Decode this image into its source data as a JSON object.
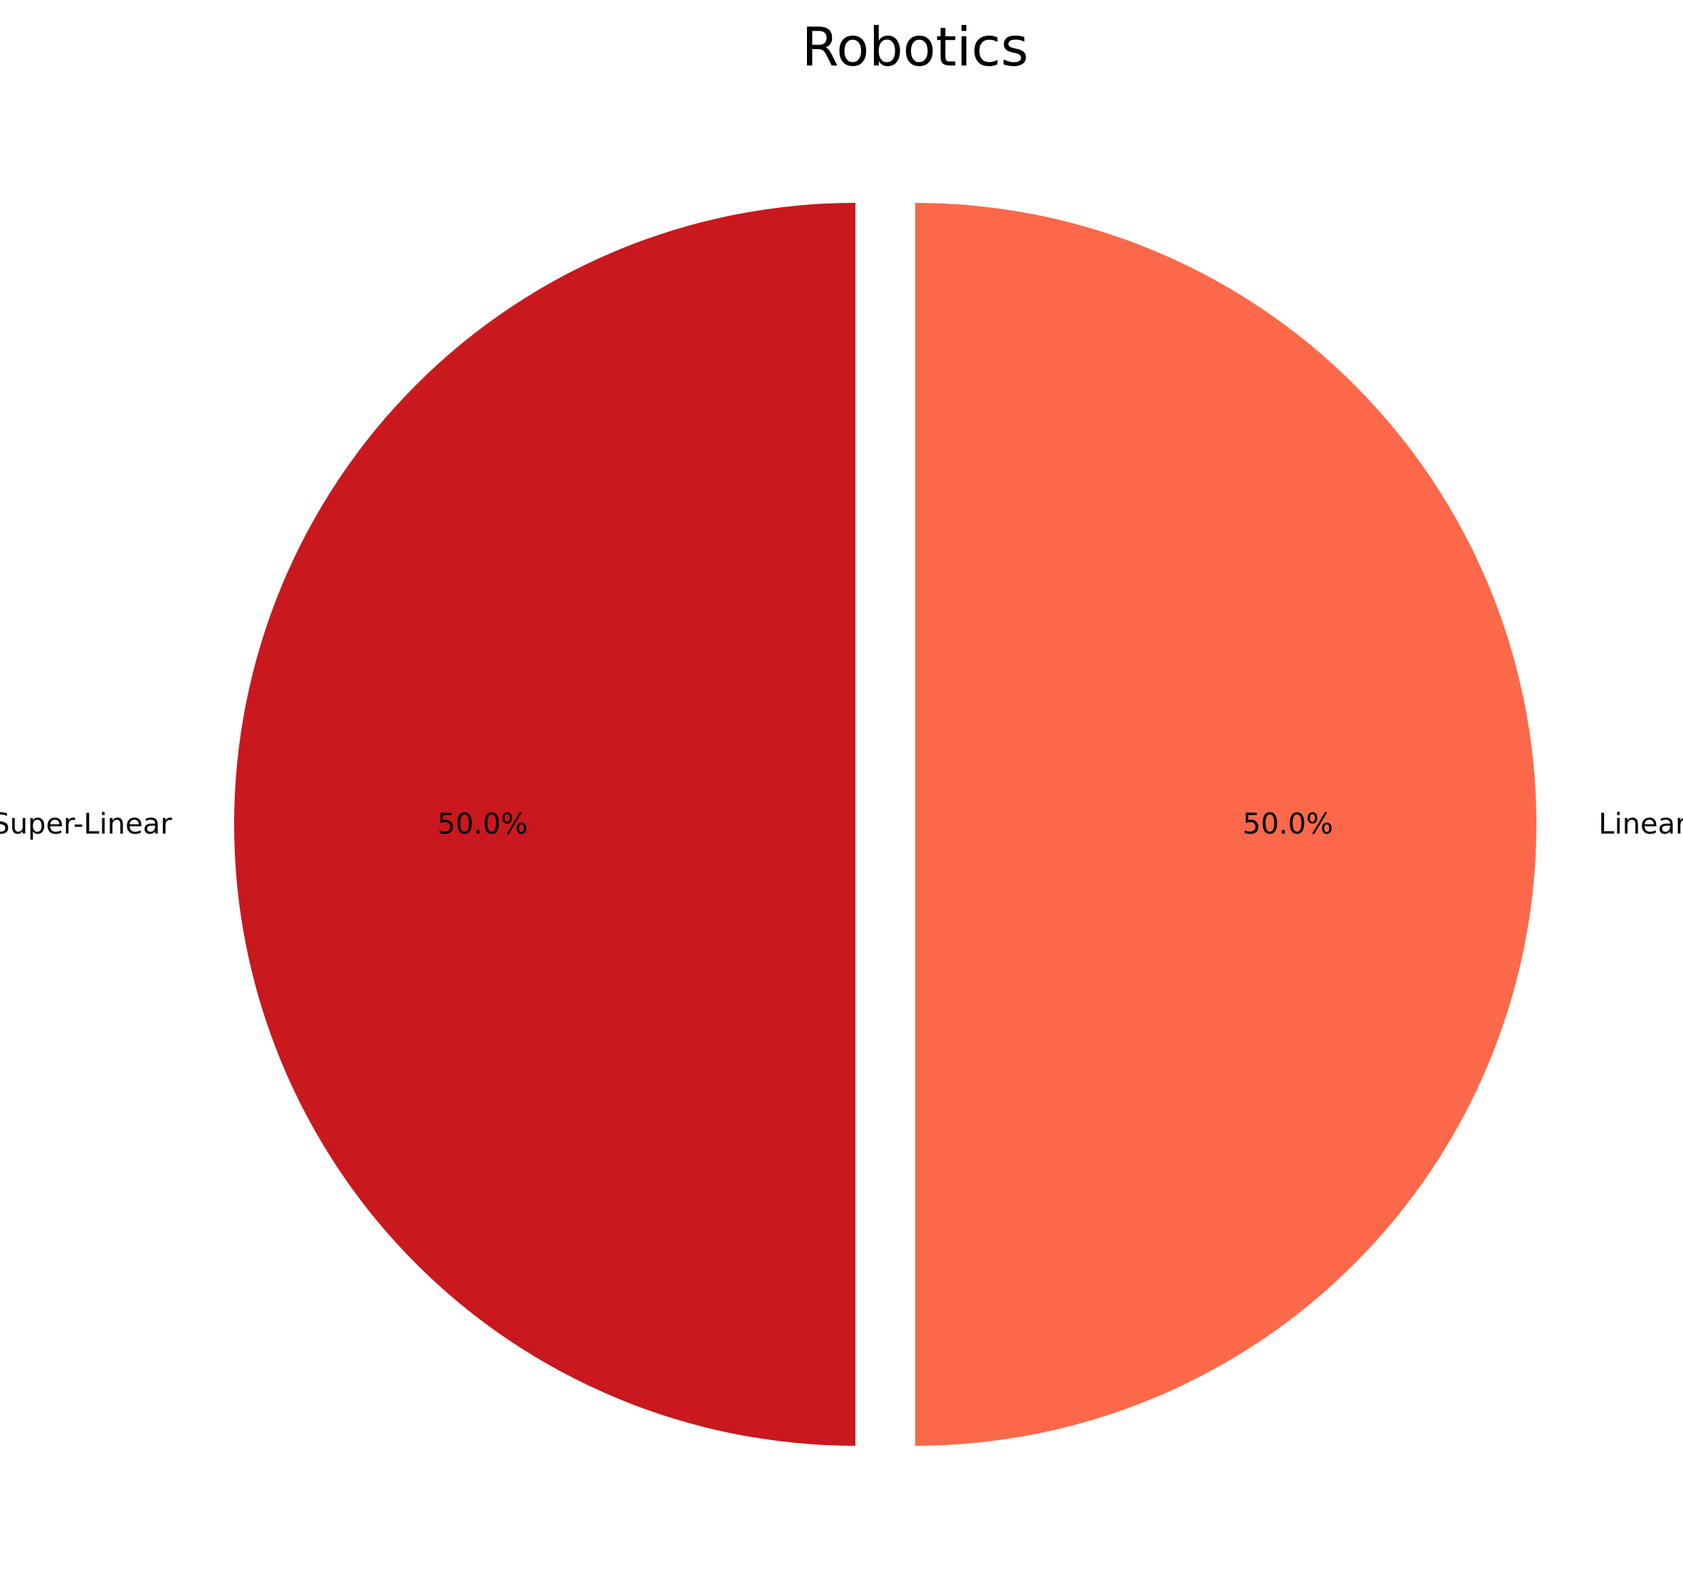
{
  "chart_data": {
    "type": "pie",
    "title": "Robotics",
    "start_angle_deg": 90,
    "direction": "counterclockwise",
    "slices": [
      {
        "label": "Super-Linear",
        "value": 50.0,
        "pct_label": "50.0%",
        "color": "#c9181e",
        "exploded": true
      },
      {
        "label": "Linear",
        "value": 50.0,
        "pct_label": "50.0%",
        "color": "#fb694a",
        "exploded": true
      }
    ]
  }
}
